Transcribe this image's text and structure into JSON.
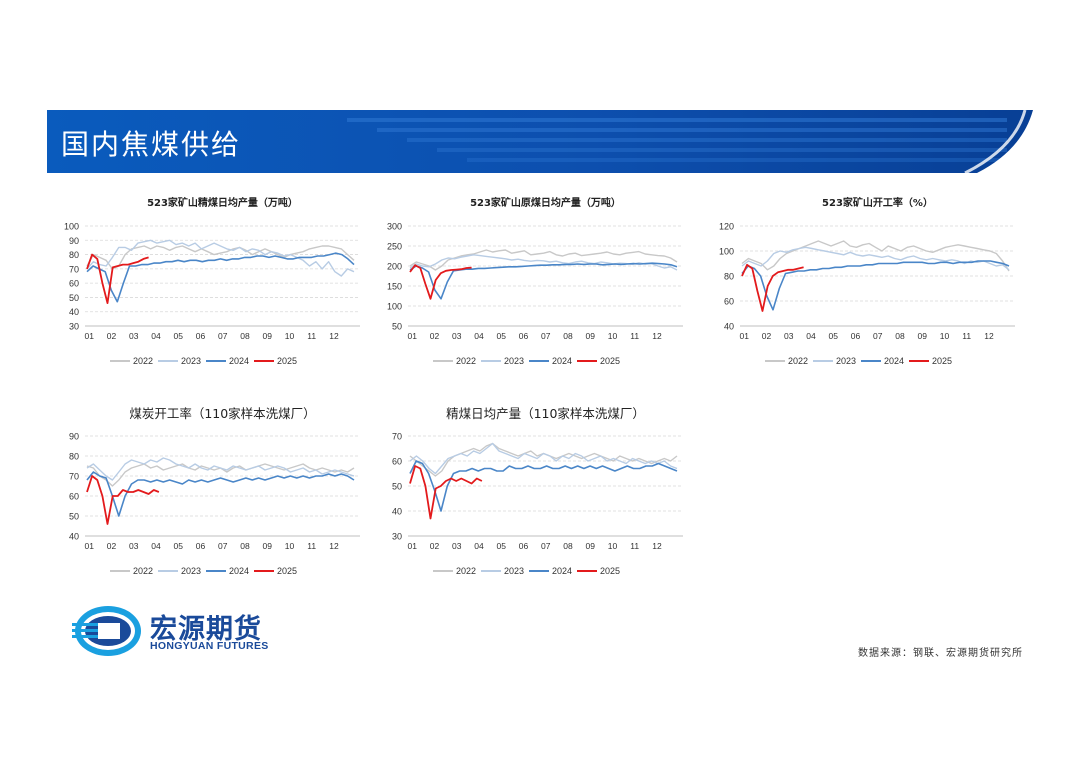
{
  "header": {
    "title": "国内焦煤供给"
  },
  "colors": {
    "y2022": "#c8c8c8",
    "y2023": "#b8cce4",
    "y2024": "#4a86c8",
    "y2025": "#e31a1c",
    "banner": "#0a56b5"
  },
  "logo": {
    "cn": "宏源期货",
    "en": "HONGYUAN FUTURES"
  },
  "footer": {
    "source": "数据来源：钢联、宏源期货研究所"
  },
  "chart_data": [
    {
      "type": "line",
      "title": "523家矿山精煤日均产量（万吨）",
      "x_ticks": [
        "01",
        "02",
        "03",
        "04",
        "05",
        "06",
        "07",
        "08",
        "09",
        "10",
        "11",
        "12"
      ],
      "ylim": [
        30,
        100
      ],
      "y_ticks": [
        30,
        40,
        50,
        60,
        70,
        80,
        90,
        100
      ],
      "series": [
        {
          "name": "2022",
          "values": [
            72,
            80,
            78,
            76,
            70,
            72,
            80,
            84,
            85,
            86,
            84,
            86,
            85,
            83,
            85,
            86,
            84,
            82,
            84,
            82,
            80,
            81,
            82,
            84,
            85,
            83,
            80,
            82,
            84,
            82,
            80,
            78,
            80,
            81,
            82,
            84,
            85,
            86,
            86,
            85,
            84,
            80,
            76
          ]
        },
        {
          "name": "2023",
          "values": [
            70,
            75,
            73,
            72,
            78,
            85,
            85,
            83,
            88,
            89,
            90,
            88,
            89,
            90,
            87,
            88,
            86,
            88,
            84,
            86,
            88,
            86,
            84,
            83,
            85,
            82,
            84,
            83,
            80,
            82,
            81,
            79,
            80,
            78,
            76,
            72,
            75,
            70,
            75,
            68,
            65,
            70,
            68
          ]
        },
        {
          "name": "2024",
          "values": [
            68,
            72,
            70,
            68,
            55,
            47,
            60,
            72,
            72,
            73,
            73,
            74,
            74,
            75,
            75,
            76,
            75,
            76,
            76,
            75,
            76,
            76,
            77,
            76,
            77,
            77,
            78,
            78,
            79,
            79,
            78,
            79,
            78,
            77,
            77,
            78,
            78,
            78,
            79,
            79,
            80,
            81,
            80,
            77,
            73
          ]
        },
        {
          "name": "2025",
          "values": [
            70,
            80,
            77,
            60,
            46,
            71,
            72,
            73,
            73,
            74,
            75,
            77,
            78
          ]
        }
      ]
    },
    {
      "type": "line",
      "title": "523家矿山原煤日均产量（万吨）",
      "x_ticks": [
        "01",
        "02",
        "03",
        "04",
        "05",
        "06",
        "07",
        "08",
        "09",
        "10",
        "11",
        "12"
      ],
      "ylim": [
        50,
        300
      ],
      "y_ticks": [
        50,
        100,
        150,
        200,
        250,
        300
      ],
      "series": [
        {
          "name": "2022",
          "values": [
            200,
            210,
            205,
            200,
            190,
            200,
            215,
            220,
            225,
            228,
            230,
            235,
            240,
            235,
            238,
            240,
            232,
            235,
            238,
            228,
            230,
            232,
            236,
            228,
            225,
            230,
            232,
            226,
            228,
            230,
            232,
            235,
            230,
            228,
            232,
            234,
            236,
            230,
            228,
            226,
            225,
            220,
            210
          ]
        },
        {
          "name": "2023",
          "values": [
            195,
            205,
            200,
            198,
            205,
            215,
            220,
            218,
            222,
            225,
            228,
            226,
            224,
            222,
            220,
            218,
            215,
            217,
            214,
            212,
            214,
            213,
            210,
            212,
            208,
            206,
            210,
            212,
            208,
            206,
            210,
            208,
            205,
            207,
            206,
            204,
            208,
            205,
            206,
            200,
            195,
            198,
            190
          ]
        },
        {
          "name": "2024",
          "values": [
            190,
            200,
            195,
            185,
            140,
            118,
            160,
            188,
            190,
            192,
            192,
            194,
            194,
            195,
            196,
            197,
            198,
            198,
            199,
            200,
            201,
            202,
            202,
            203,
            203,
            204,
            204,
            205,
            204,
            205,
            205,
            203,
            204,
            205,
            204,
            205,
            206,
            205,
            206,
            207,
            206,
            205,
            203,
            198
          ]
        },
        {
          "name": "2025",
          "values": [
            185,
            202,
            195,
            155,
            118,
            165,
            182,
            188,
            190,
            191,
            192,
            195,
            196
          ]
        }
      ]
    },
    {
      "type": "line",
      "title": "523家矿山开工率（%）",
      "x_ticks": [
        "01",
        "02",
        "03",
        "04",
        "05",
        "06",
        "07",
        "08",
        "09",
        "10",
        "11",
        "12"
      ],
      "ylim": [
        40,
        120
      ],
      "y_ticks": [
        40,
        60,
        80,
        100,
        120
      ],
      "series": [
        {
          "name": "2022",
          "values": [
            90,
            94,
            92,
            90,
            85,
            88,
            94,
            98,
            100,
            102,
            104,
            106,
            108,
            106,
            104,
            106,
            108,
            104,
            103,
            105,
            106,
            103,
            100,
            104,
            102,
            100,
            103,
            104,
            102,
            100,
            99,
            101,
            103,
            104,
            105,
            104,
            103,
            102,
            101,
            100,
            98,
            92,
            84
          ]
        },
        {
          "name": "2023",
          "values": [
            88,
            92,
            90,
            88,
            92,
            98,
            100,
            99,
            101,
            102,
            103,
            102,
            101,
            100,
            99,
            98,
            97,
            99,
            97,
            96,
            97,
            96,
            95,
            96,
            94,
            93,
            95,
            96,
            94,
            93,
            94,
            93,
            92,
            93,
            92,
            90,
            92,
            91,
            92,
            90,
            88,
            89,
            85
          ]
        },
        {
          "name": "2024",
          "values": [
            82,
            88,
            86,
            80,
            64,
            53,
            70,
            82,
            83,
            84,
            84,
            85,
            85,
            86,
            86,
            87,
            87,
            88,
            88,
            88,
            89,
            89,
            90,
            90,
            90,
            90,
            91,
            91,
            91,
            91,
            90,
            90,
            91,
            91,
            90,
            91,
            91,
            91,
            92,
            92,
            92,
            91,
            90,
            88
          ]
        },
        {
          "name": "2025",
          "values": [
            80,
            89,
            86,
            68,
            52,
            72,
            80,
            83,
            84,
            85,
            85,
            86,
            87
          ]
        }
      ]
    },
    {
      "type": "line",
      "title": "煤炭开工率（110家样本洗煤厂）",
      "x_ticks": [
        "01",
        "02",
        "03",
        "04",
        "05",
        "06",
        "07",
        "08",
        "09",
        "10",
        "11",
        "12"
      ],
      "ylim": [
        40,
        90
      ],
      "y_ticks": [
        40,
        50,
        60,
        70,
        80,
        90
      ],
      "series": [
        {
          "name": "2022",
          "values": [
            75,
            74,
            70,
            68,
            65,
            68,
            72,
            74,
            75,
            76,
            74,
            75,
            73,
            74,
            75,
            76,
            74,
            73,
            75,
            74,
            73,
            74,
            72,
            74,
            75,
            73,
            74,
            75,
            76,
            75,
            74,
            73,
            74,
            75,
            76,
            74,
            73,
            74,
            73,
            72,
            73,
            72,
            74
          ]
        },
        {
          "name": "2023",
          "values": [
            74,
            76,
            73,
            70,
            68,
            72,
            76,
            78,
            77,
            76,
            78,
            77,
            79,
            78,
            76,
            75,
            74,
            76,
            74,
            73,
            75,
            74,
            73,
            75,
            74,
            73,
            74,
            75,
            73,
            74,
            75,
            74,
            72,
            73,
            74,
            72,
            73,
            71,
            72,
            73,
            72,
            71,
            70
          ]
        },
        {
          "name": "2024",
          "values": [
            68,
            72,
            70,
            69,
            60,
            50,
            60,
            66,
            68,
            68,
            67,
            68,
            67,
            68,
            67,
            66,
            68,
            67,
            68,
            67,
            68,
            69,
            68,
            67,
            68,
            69,
            68,
            69,
            68,
            69,
            70,
            69,
            70,
            69,
            70,
            69,
            70,
            70,
            71,
            70,
            71,
            70,
            68
          ]
        },
        {
          "name": "2025",
          "values": [
            62,
            70,
            68,
            60,
            46,
            60,
            60,
            63,
            62,
            62,
            63,
            62,
            61,
            63,
            62
          ]
        }
      ]
    },
    {
      "type": "line",
      "title": "精煤日均产量（110家样本洗煤厂）",
      "x_ticks": [
        "01",
        "02",
        "03",
        "04",
        "05",
        "06",
        "07",
        "08",
        "09",
        "10",
        "11",
        "12"
      ],
      "ylim": [
        30,
        70
      ],
      "y_ticks": [
        30,
        40,
        50,
        60,
        70
      ],
      "series": [
        {
          "name": "2022",
          "values": [
            62,
            60,
            58,
            56,
            54,
            56,
            60,
            62,
            63,
            64,
            65,
            64,
            66,
            67,
            65,
            64,
            63,
            62,
            63,
            64,
            62,
            63,
            62,
            61,
            62,
            63,
            62,
            61,
            62,
            63,
            62,
            61,
            60,
            62,
            61,
            60,
            61,
            60,
            59,
            60,
            61,
            60,
            62
          ]
        },
        {
          "name": "2023",
          "values": [
            60,
            62,
            60,
            57,
            55,
            58,
            61,
            62,
            63,
            62,
            64,
            63,
            65,
            67,
            64,
            63,
            62,
            61,
            63,
            62,
            61,
            63,
            62,
            60,
            62,
            61,
            63,
            62,
            60,
            61,
            62,
            60,
            61,
            60,
            59,
            61,
            60,
            59,
            60,
            59,
            60,
            58,
            57
          ]
        },
        {
          "name": "2024",
          "values": [
            55,
            60,
            59,
            55,
            48,
            40,
            50,
            55,
            56,
            56,
            57,
            56,
            57,
            57,
            56,
            56,
            58,
            57,
            57,
            58,
            57,
            57,
            58,
            57,
            57,
            58,
            57,
            58,
            57,
            58,
            57,
            58,
            57,
            56,
            57,
            58,
            57,
            57,
            58,
            58,
            59,
            58,
            57,
            56
          ]
        },
        {
          "name": "2025",
          "values": [
            51,
            58,
            57,
            50,
            37,
            49,
            50,
            52,
            53,
            52,
            53,
            52,
            51,
            53,
            52
          ]
        }
      ]
    }
  ]
}
